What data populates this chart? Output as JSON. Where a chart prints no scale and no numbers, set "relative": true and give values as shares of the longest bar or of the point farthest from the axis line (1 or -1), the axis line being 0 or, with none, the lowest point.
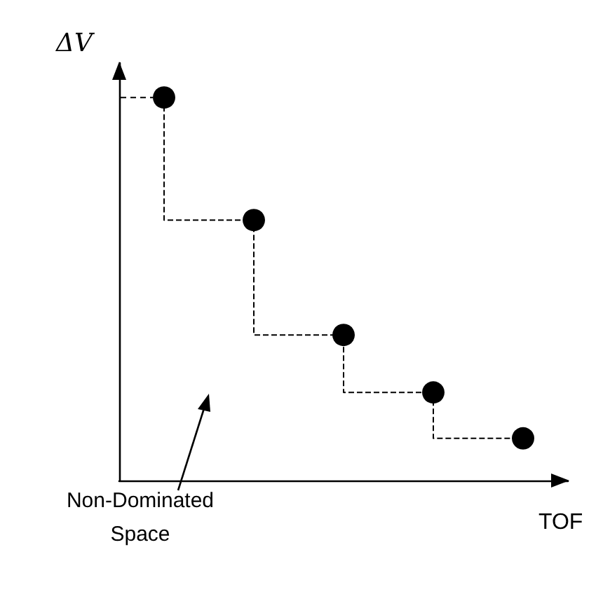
{
  "chart_data": {
    "type": "step",
    "xlabel": "TOF",
    "ylabel": "ΔV",
    "annotations": [
      "Non-Dominated Space"
    ],
    "categories": [
      null,
      null,
      null,
      null,
      null
    ],
    "values": [
      1,
      0.68,
      0.38,
      0.23,
      0.11
    ],
    "color": "#000000",
    "relative": true,
    "marker": "circle",
    "line_style": "dashed"
  }
}
